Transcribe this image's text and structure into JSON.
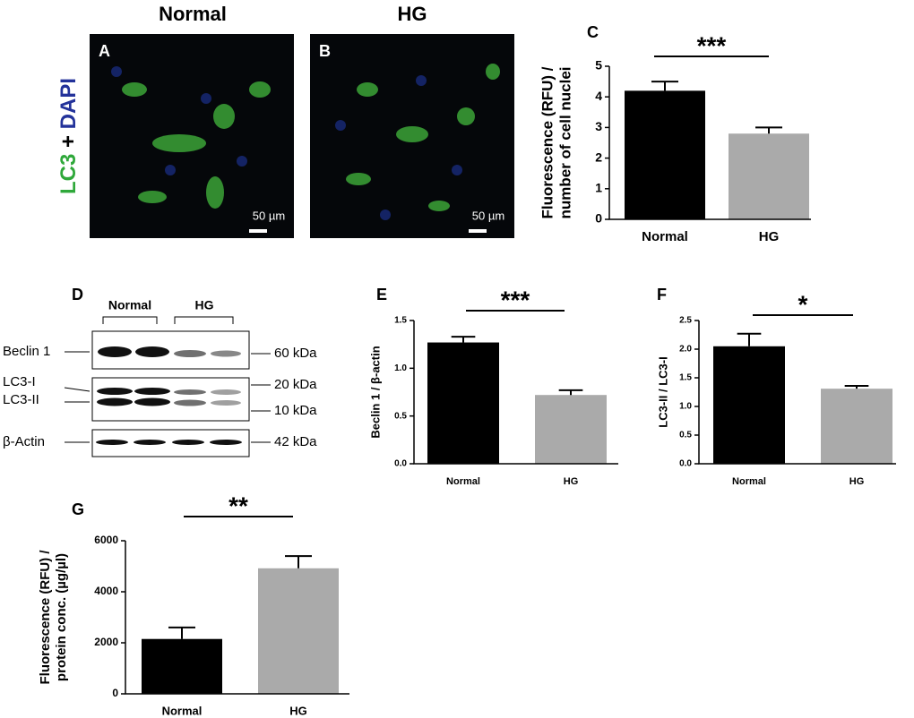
{
  "micrographs": {
    "row_label": [
      "LC3",
      "+",
      "DAPI"
    ],
    "panels": [
      {
        "title": "Normal",
        "label": "A",
        "scale": "50 µm"
      },
      {
        "title": "HG",
        "label": "B",
        "scale": "50 µm"
      }
    ]
  },
  "blot": {
    "label": "D",
    "groups": [
      "Normal",
      "HG"
    ],
    "bands": [
      "Beclin 1",
      "LC3-I",
      "LC3-II",
      "β-Actin"
    ],
    "markers": [
      "60 kDa",
      "20 kDa",
      "10 kDa",
      "42 kDa"
    ]
  },
  "chart_data": [
    {
      "type": "bar",
      "panel": "C",
      "categories": [
        "Normal",
        "HG"
      ],
      "values": [
        4.2,
        2.8
      ],
      "errors": [
        0.3,
        0.2
      ],
      "colors": [
        "#000000",
        "#aaaaaa"
      ],
      "ylabel": [
        "Fluorescence (RFU) /",
        "number of cell nuclei"
      ],
      "ylim": [
        0,
        5
      ],
      "yticks": [
        0,
        1,
        2,
        3,
        4,
        5
      ],
      "significance": "***"
    },
    {
      "type": "bar",
      "panel": "E",
      "categories": [
        "Normal",
        "HG"
      ],
      "values": [
        1.27,
        0.72
      ],
      "errors": [
        0.06,
        0.05
      ],
      "colors": [
        "#000000",
        "#aaaaaa"
      ],
      "ylabel": [
        "Beclin 1 / β-actin"
      ],
      "ylim": [
        0,
        1.5
      ],
      "yticks": [
        {
          "value": 0,
          "label": "0.0"
        },
        {
          "value": 0.5,
          "label": "0.5"
        },
        {
          "value": 1,
          "label": "1.0"
        },
        {
          "value": 1.5,
          "label": "1.5"
        }
      ],
      "significance": "***"
    },
    {
      "type": "bar",
      "panel": "F",
      "categories": [
        "Normal",
        "HG"
      ],
      "values": [
        2.05,
        1.31
      ],
      "errors": [
        0.22,
        0.05
      ],
      "colors": [
        "#000000",
        "#aaaaaa"
      ],
      "ylabel": [
        "LC3-II / LC3-I"
      ],
      "ylim": [
        0,
        2.5
      ],
      "yticks": [
        {
          "value": 0,
          "label": "0.0"
        },
        {
          "value": 0.5,
          "label": "0.5"
        },
        {
          "value": 1,
          "label": "1.0"
        },
        {
          "value": 1.5,
          "label": "1.5"
        },
        {
          "value": 2,
          "label": "2.0"
        },
        {
          "value": 2.5,
          "label": "2.5"
        }
      ],
      "significance": "*"
    },
    {
      "type": "bar",
      "panel": "G",
      "categories": [
        "Normal",
        "HG"
      ],
      "values": [
        2150,
        4920
      ],
      "errors": [
        450,
        480
      ],
      "colors": [
        "#000000",
        "#aaaaaa"
      ],
      "ylabel": [
        "Fluorescence (RFU) /",
        "protein conc. (µg/µl)"
      ],
      "ylim": [
        0,
        6000
      ],
      "yticks": [
        0,
        2000,
        4000,
        6000
      ],
      "significance": "**"
    }
  ]
}
